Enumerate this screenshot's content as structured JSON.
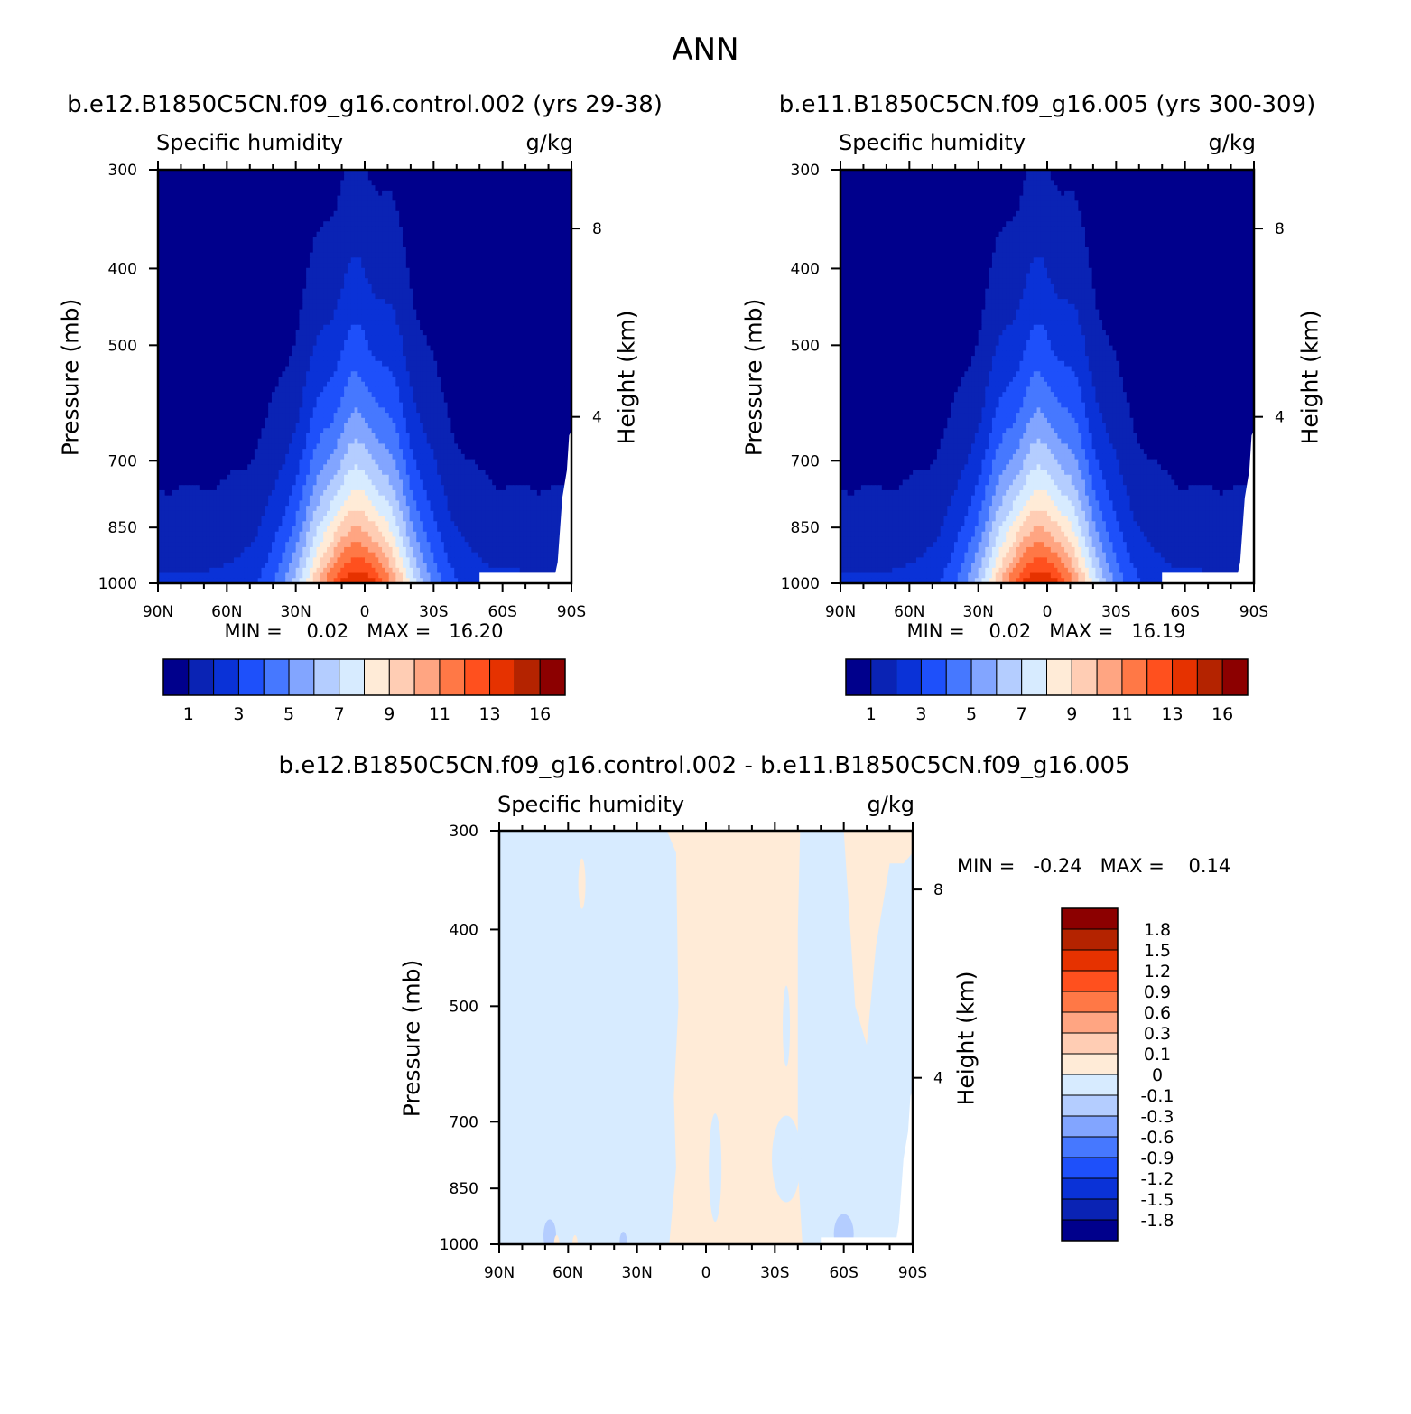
{
  "figure": {
    "season": "ANN"
  },
  "panels": [
    {
      "case_title": "b.e12.B1850C5CN.f09_g16.control.002 (yrs 29-38)",
      "variable_label": "Specific humidity",
      "units": "g/kg",
      "ylabel": "Pressure (mb)",
      "ylabel_right": "Height (km)",
      "minmax_text": "MIN =    0.02   MAX =   16.20",
      "min": 0.02,
      "max": 16.2
    },
    {
      "case_title": "b.e11.B1850C5CN.f09_g16.005 (yrs 300-309)",
      "variable_label": "Specific humidity",
      "units": "g/kg",
      "ylabel": "Pressure (mb)",
      "ylabel_right": "Height (km)",
      "minmax_text": "MIN =    0.02   MAX =   16.19",
      "min": 0.02,
      "max": 16.19
    },
    {
      "case_title": "b.e12.B1850C5CN.f09_g16.control.002 - b.e11.B1850C5CN.f09_g16.005",
      "variable_label": "Specific humidity",
      "units": "g/kg",
      "ylabel": "Pressure (mb)",
      "ylabel_right": "Height (km)",
      "minmax_text": "MIN =   -0.24   MAX =    0.14",
      "min": -0.24,
      "max": 0.14
    }
  ],
  "chart_data": [
    {
      "type": "heatmap",
      "subtype": "filled contour, zonal-mean latitude-pressure cross section",
      "title": "b.e12.B1850C5CN.f09_g16.control.002 (yrs 29-38)",
      "xlabel": "",
      "ylabel": "Pressure (mb)",
      "ylabel_right": "Height (km)",
      "x_ticks": [
        "90N",
        "60N",
        "30N",
        "0",
        "30S",
        "60S",
        "90S"
      ],
      "y_ticks": [
        "300",
        "400",
        "500",
        "700",
        "850",
        "1000"
      ],
      "y_right_ticks": [
        "8",
        "4"
      ],
      "xlim": [
        90,
        -90
      ],
      "ylim": [
        1000,
        300
      ],
      "y_scale": "log",
      "contour_levels": [
        1,
        2,
        3,
        4,
        5,
        6,
        7,
        8,
        9,
        10,
        11,
        12,
        13,
        14,
        16
      ],
      "colorbar_labels": [
        "1",
        "3",
        "5",
        "7",
        "9",
        "11",
        "13",
        "16"
      ],
      "colorbar_orientation": "horizontal",
      "min": 0.02,
      "max": 16.2
    },
    {
      "type": "heatmap",
      "subtype": "filled contour, zonal-mean latitude-pressure cross section",
      "title": "b.e11.B1850C5CN.f09_g16.005 (yrs 300-309)",
      "xlabel": "",
      "ylabel": "Pressure (mb)",
      "ylabel_right": "Height (km)",
      "x_ticks": [
        "90N",
        "60N",
        "30N",
        "0",
        "30S",
        "60S",
        "90S"
      ],
      "y_ticks": [
        "300",
        "400",
        "500",
        "700",
        "850",
        "1000"
      ],
      "y_right_ticks": [
        "8",
        "4"
      ],
      "xlim": [
        90,
        -90
      ],
      "ylim": [
        1000,
        300
      ],
      "y_scale": "log",
      "contour_levels": [
        1,
        2,
        3,
        4,
        5,
        6,
        7,
        8,
        9,
        10,
        11,
        12,
        13,
        14,
        16
      ],
      "colorbar_labels": [
        "1",
        "3",
        "5",
        "7",
        "9",
        "11",
        "13",
        "16"
      ],
      "colorbar_orientation": "horizontal",
      "min": 0.02,
      "max": 16.19
    },
    {
      "type": "heatmap",
      "subtype": "filled contour difference",
      "title": "b.e12.B1850C5CN.f09_g16.control.002 - b.e11.B1850C5CN.f09_g16.005",
      "xlabel": "",
      "ylabel": "Pressure (mb)",
      "ylabel_right": "Height (km)",
      "x_ticks": [
        "90N",
        "60N",
        "30N",
        "0",
        "30S",
        "60S",
        "90S"
      ],
      "y_ticks": [
        "300",
        "400",
        "500",
        "700",
        "850",
        "1000"
      ],
      "y_right_ticks": [
        "8",
        "4"
      ],
      "xlim": [
        90,
        -90
      ],
      "ylim": [
        1000,
        300
      ],
      "y_scale": "log",
      "contour_levels": [
        -1.8,
        -1.5,
        -1.2,
        -0.9,
        -0.6,
        -0.3,
        -0.1,
        0,
        0.1,
        0.3,
        0.6,
        0.9,
        1.2,
        1.5,
        1.8
      ],
      "colorbar_labels": [
        "1.8",
        "1.5",
        "1.2",
        "0.9",
        "0.6",
        "0.3",
        "0.1",
        "0",
        "-0.1",
        "-0.3",
        "-0.6",
        "-0.9",
        "-1.2",
        "-1.5",
        "-1.8"
      ],
      "colorbar_orientation": "vertical",
      "min": -0.24,
      "max": 0.14
    }
  ],
  "colors": {
    "sequential": [
      "#00008c",
      "#0a23b4",
      "#0a32d7",
      "#1e50fa",
      "#4678ff",
      "#82a5ff",
      "#b4cdff",
      "#d7ebff",
      "#ffebd7",
      "#ffcdb4",
      "#ffa582",
      "#ff7846",
      "#ff501e",
      "#e63200",
      "#b42300",
      "#8c0000"
    ],
    "diff_top_to_bottom": [
      "#8c0000",
      "#b42300",
      "#e63200",
      "#ff501e",
      "#ff7846",
      "#ffa582",
      "#ffcdb4",
      "#ffebd7",
      "#d7ebff",
      "#b4cdff",
      "#82a5ff",
      "#4678ff",
      "#1e50fa",
      "#0a32d7",
      "#0a23b4",
      "#00008c"
    ]
  }
}
